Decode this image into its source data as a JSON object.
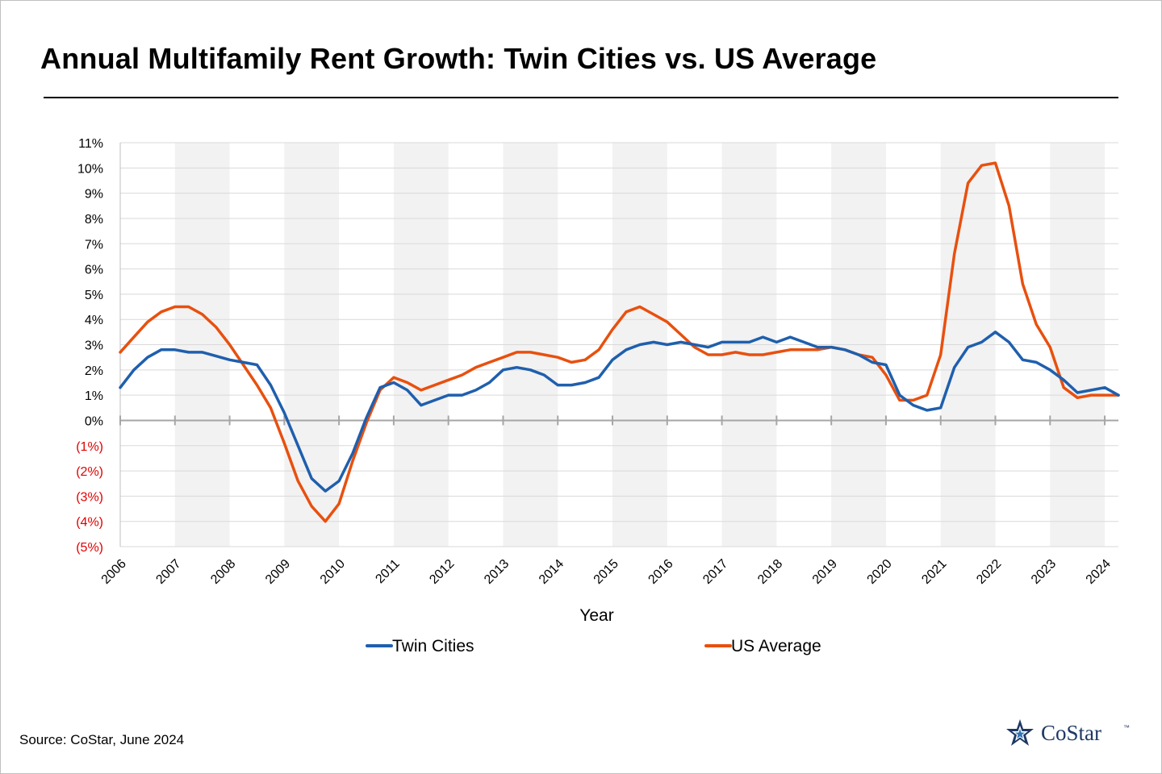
{
  "title": "Annual Multifamily Rent Growth: Twin Cities vs. US Average",
  "source": "Source: CoStar, June 2024",
  "logo": {
    "text": "CoStar",
    "tm": "™",
    "color": "#1f3864",
    "icon": "star-icon"
  },
  "chart_data": {
    "type": "line",
    "title": "Annual Multifamily Rent Growth: Twin Cities vs. US Average",
    "xlabel": "Year",
    "ylabel": "",
    "ylim": [
      -5,
      11
    ],
    "xlim": [
      2006.0,
      2024.25
    ],
    "grid": true,
    "shaded_bands": "alternate years shaded light gray",
    "x_ticks": [
      2006,
      2007,
      2008,
      2009,
      2010,
      2011,
      2012,
      2013,
      2014,
      2015,
      2016,
      2017,
      2018,
      2019,
      2020,
      2021,
      2022,
      2023,
      2024
    ],
    "y_ticks": [
      {
        "value": 11,
        "label": "11%",
        "negative": false
      },
      {
        "value": 10,
        "label": "10%",
        "negative": false
      },
      {
        "value": 9,
        "label": "9%",
        "negative": false
      },
      {
        "value": 8,
        "label": "8%",
        "negative": false
      },
      {
        "value": 7,
        "label": "7%",
        "negative": false
      },
      {
        "value": 6,
        "label": "6%",
        "negative": false
      },
      {
        "value": 5,
        "label": "5%",
        "negative": false
      },
      {
        "value": 4,
        "label": "4%",
        "negative": false
      },
      {
        "value": 3,
        "label": "3%",
        "negative": false
      },
      {
        "value": 2,
        "label": "2%",
        "negative": false
      },
      {
        "value": 1,
        "label": "1%",
        "negative": false
      },
      {
        "value": 0,
        "label": "0%",
        "negative": false
      },
      {
        "value": -1,
        "label": "(1%)",
        "negative": true
      },
      {
        "value": -2,
        "label": "(2%)",
        "negative": true
      },
      {
        "value": -3,
        "label": "(3%)",
        "negative": true
      },
      {
        "value": -4,
        "label": "(4%)",
        "negative": true
      },
      {
        "value": -5,
        "label": "(5%)",
        "negative": true
      }
    ],
    "legend": {
      "position": "bottom-center"
    },
    "series": [
      {
        "name": "Twin Cities",
        "color": "#1f5fad",
        "points": [
          [
            2006.0,
            1.3
          ],
          [
            2006.25,
            2.0
          ],
          [
            2006.5,
            2.5
          ],
          [
            2006.75,
            2.8
          ],
          [
            2007.0,
            2.8
          ],
          [
            2007.25,
            2.7
          ],
          [
            2007.5,
            2.7
          ],
          [
            2007.75,
            2.55
          ],
          [
            2008.0,
            2.4
          ],
          [
            2008.25,
            2.3
          ],
          [
            2008.5,
            2.2
          ],
          [
            2008.75,
            1.4
          ],
          [
            2009.0,
            0.3
          ],
          [
            2009.25,
            -1.0
          ],
          [
            2009.5,
            -2.3
          ],
          [
            2009.75,
            -2.8
          ],
          [
            2010.0,
            -2.4
          ],
          [
            2010.25,
            -1.3
          ],
          [
            2010.5,
            0.1
          ],
          [
            2010.75,
            1.3
          ],
          [
            2011.0,
            1.5
          ],
          [
            2011.25,
            1.2
          ],
          [
            2011.5,
            0.6
          ],
          [
            2011.75,
            0.8
          ],
          [
            2012.0,
            1.0
          ],
          [
            2012.25,
            1.0
          ],
          [
            2012.5,
            1.2
          ],
          [
            2012.75,
            1.5
          ],
          [
            2013.0,
            2.0
          ],
          [
            2013.25,
            2.1
          ],
          [
            2013.5,
            2.0
          ],
          [
            2013.75,
            1.8
          ],
          [
            2014.0,
            1.4
          ],
          [
            2014.25,
            1.4
          ],
          [
            2014.5,
            1.5
          ],
          [
            2014.75,
            1.7
          ],
          [
            2015.0,
            2.4
          ],
          [
            2015.25,
            2.8
          ],
          [
            2015.5,
            3.0
          ],
          [
            2015.75,
            3.1
          ],
          [
            2016.0,
            3.0
          ],
          [
            2016.25,
            3.1
          ],
          [
            2016.5,
            3.0
          ],
          [
            2016.75,
            2.9
          ],
          [
            2017.0,
            3.1
          ],
          [
            2017.25,
            3.1
          ],
          [
            2017.5,
            3.1
          ],
          [
            2017.75,
            3.3
          ],
          [
            2018.0,
            3.1
          ],
          [
            2018.25,
            3.3
          ],
          [
            2018.5,
            3.1
          ],
          [
            2018.75,
            2.9
          ],
          [
            2019.0,
            2.9
          ],
          [
            2019.25,
            2.8
          ],
          [
            2019.5,
            2.6
          ],
          [
            2019.75,
            2.3
          ],
          [
            2020.0,
            2.2
          ],
          [
            2020.25,
            1.0
          ],
          [
            2020.5,
            0.6
          ],
          [
            2020.75,
            0.4
          ],
          [
            2021.0,
            0.5
          ],
          [
            2021.25,
            2.1
          ],
          [
            2021.5,
            2.9
          ],
          [
            2021.75,
            3.1
          ],
          [
            2022.0,
            3.5
          ],
          [
            2022.25,
            3.1
          ],
          [
            2022.5,
            2.4
          ],
          [
            2022.75,
            2.3
          ],
          [
            2023.0,
            2.0
          ],
          [
            2023.25,
            1.6
          ],
          [
            2023.5,
            1.1
          ],
          [
            2023.75,
            1.2
          ],
          [
            2024.0,
            1.3
          ],
          [
            2024.25,
            1.0
          ]
        ]
      },
      {
        "name": "US Average",
        "color": "#e8500f",
        "points": [
          [
            2006.0,
            2.7
          ],
          [
            2006.25,
            3.3
          ],
          [
            2006.5,
            3.9
          ],
          [
            2006.75,
            4.3
          ],
          [
            2007.0,
            4.5
          ],
          [
            2007.25,
            4.5
          ],
          [
            2007.5,
            4.2
          ],
          [
            2007.75,
            3.7
          ],
          [
            2008.0,
            3.0
          ],
          [
            2008.25,
            2.2
          ],
          [
            2008.5,
            1.4
          ],
          [
            2008.75,
            0.5
          ],
          [
            2009.0,
            -0.9
          ],
          [
            2009.25,
            -2.4
          ],
          [
            2009.5,
            -3.4
          ],
          [
            2009.75,
            -4.0
          ],
          [
            2010.0,
            -3.3
          ],
          [
            2010.25,
            -1.6
          ],
          [
            2010.5,
            -0.1
          ],
          [
            2010.75,
            1.2
          ],
          [
            2011.0,
            1.7
          ],
          [
            2011.25,
            1.5
          ],
          [
            2011.5,
            1.2
          ],
          [
            2011.75,
            1.4
          ],
          [
            2012.0,
            1.6
          ],
          [
            2012.25,
            1.8
          ],
          [
            2012.5,
            2.1
          ],
          [
            2012.75,
            2.3
          ],
          [
            2013.0,
            2.5
          ],
          [
            2013.25,
            2.7
          ],
          [
            2013.5,
            2.7
          ],
          [
            2013.75,
            2.6
          ],
          [
            2014.0,
            2.5
          ],
          [
            2014.25,
            2.3
          ],
          [
            2014.5,
            2.4
          ],
          [
            2014.75,
            2.8
          ],
          [
            2015.0,
            3.6
          ],
          [
            2015.25,
            4.3
          ],
          [
            2015.5,
            4.5
          ],
          [
            2015.75,
            4.2
          ],
          [
            2016.0,
            3.9
          ],
          [
            2016.25,
            3.4
          ],
          [
            2016.5,
            2.9
          ],
          [
            2016.75,
            2.6
          ],
          [
            2017.0,
            2.6
          ],
          [
            2017.25,
            2.7
          ],
          [
            2017.5,
            2.6
          ],
          [
            2017.75,
            2.6
          ],
          [
            2018.0,
            2.7
          ],
          [
            2018.25,
            2.8
          ],
          [
            2018.5,
            2.8
          ],
          [
            2018.75,
            2.8
          ],
          [
            2019.0,
            2.9
          ],
          [
            2019.25,
            2.8
          ],
          [
            2019.5,
            2.6
          ],
          [
            2019.75,
            2.5
          ],
          [
            2020.0,
            1.8
          ],
          [
            2020.25,
            0.8
          ],
          [
            2020.5,
            0.8
          ],
          [
            2020.75,
            1.0
          ],
          [
            2021.0,
            2.6
          ],
          [
            2021.25,
            6.6
          ],
          [
            2021.5,
            9.4
          ],
          [
            2021.75,
            10.1
          ],
          [
            2022.0,
            10.2
          ],
          [
            2022.25,
            8.5
          ],
          [
            2022.5,
            5.4
          ],
          [
            2022.75,
            3.8
          ],
          [
            2023.0,
            2.9
          ],
          [
            2023.25,
            1.3
          ],
          [
            2023.5,
            0.9
          ],
          [
            2023.75,
            1.0
          ],
          [
            2024.0,
            1.0
          ],
          [
            2024.25,
            1.0
          ]
        ]
      }
    ]
  }
}
